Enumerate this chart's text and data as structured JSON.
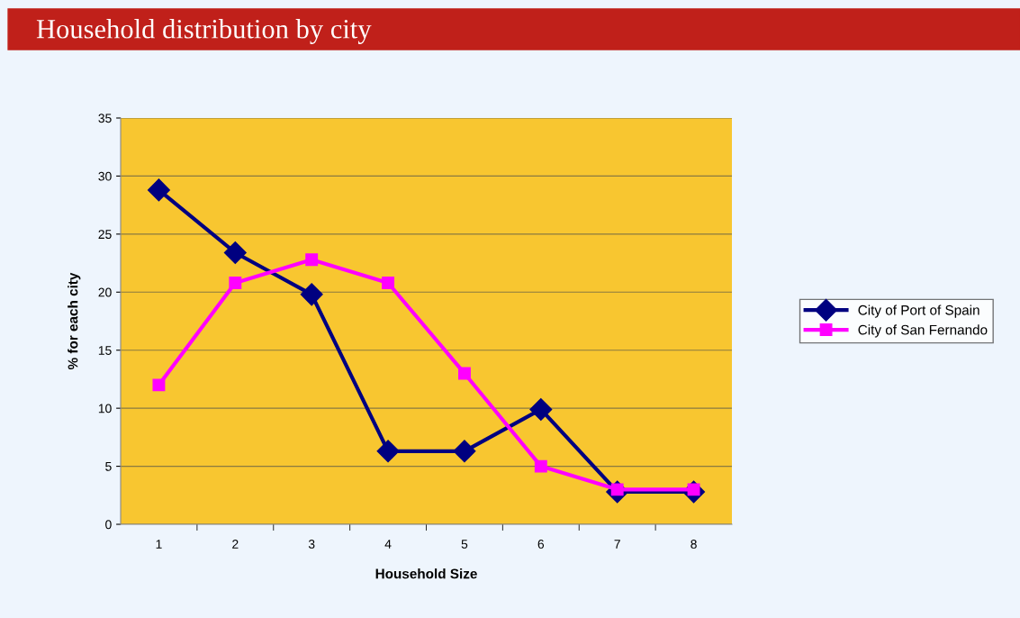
{
  "chart_data": {
    "type": "line",
    "title": "Household distribution by city",
    "xlabel": "Household Size",
    "ylabel": "% for each city",
    "categories": [
      "1",
      "2",
      "3",
      "4",
      "5",
      "6",
      "7",
      "8"
    ],
    "series": [
      {
        "name": "City of Port of Spain",
        "color": "#000080",
        "marker": "diamond",
        "values": [
          28.8,
          23.4,
          19.8,
          6.3,
          6.3,
          9.9,
          2.8,
          2.8
        ]
      },
      {
        "name": "City of San Fernando",
        "color": "#ff00ff",
        "marker": "square",
        "values": [
          12.0,
          20.8,
          22.8,
          20.8,
          13.0,
          5.0,
          3.0,
          3.0
        ]
      }
    ],
    "ylim": [
      0,
      35
    ],
    "yticks": [
      0,
      5,
      10,
      15,
      20,
      25,
      30,
      35
    ],
    "grid": "y",
    "legend": "right",
    "line_style": "solid"
  }
}
